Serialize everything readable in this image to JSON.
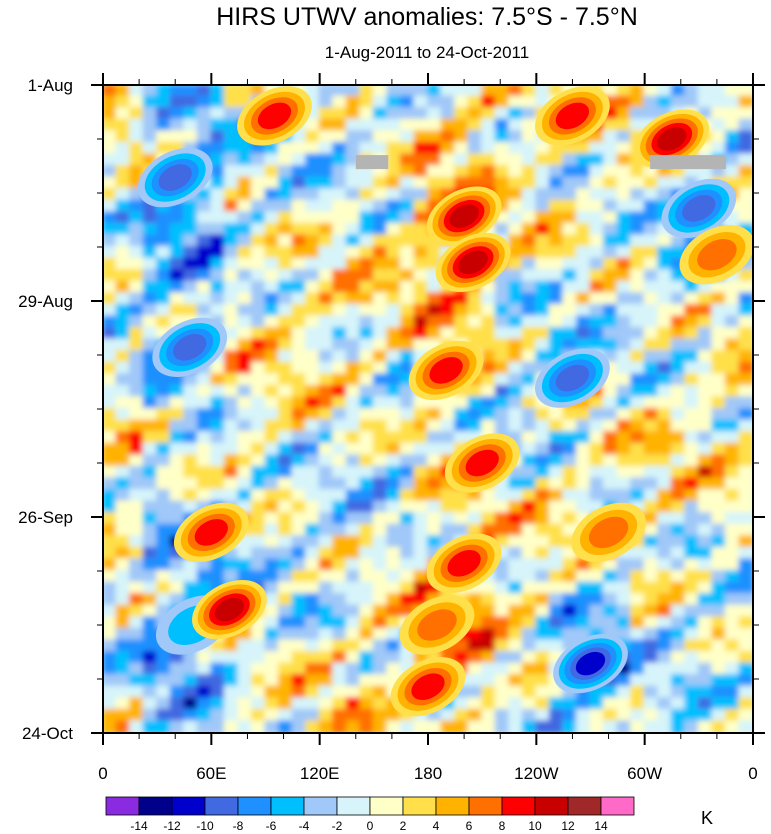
{
  "chart_data": {
    "type": "heatmap",
    "title": "HIRS UTWV anomalies: 7.5°S - 7.5°N",
    "subtitle": "1-Aug-2011 to 24-Oct-2011",
    "x_tick_labels": [
      "0",
      "60E",
      "120E",
      "180",
      "120W",
      "60W",
      "0"
    ],
    "x_tick_longitudes": [
      0,
      60,
      120,
      180,
      240,
      300,
      360
    ],
    "y_tick_labels": [
      "1-Aug",
      "29-Aug",
      "26-Sep",
      "24-Oct"
    ],
    "y_tick_days": [
      0,
      28,
      56,
      84
    ],
    "colorbar_labels": [
      "-14",
      "-12",
      "-10",
      "-8",
      "-6",
      "-4",
      "-2",
      "0",
      "2",
      "4",
      "6",
      "8",
      "10",
      "12",
      "14"
    ],
    "colorbar_levels": [
      -14,
      -12,
      -10,
      -8,
      -6,
      -4,
      -2,
      0,
      2,
      4,
      6,
      8,
      10,
      12,
      14
    ],
    "colorbar_colors": [
      "#8a2be2",
      "#00008b",
      "#0000cd",
      "#4169e1",
      "#1e90ff",
      "#00bfff",
      "#a0c8f8",
      "#d6f4fa",
      "#ffffc8",
      "#ffe04a",
      "#ffb300",
      "#ff7000",
      "#ff0000",
      "#c80000",
      "#a02828",
      "#ff69c8"
    ],
    "units": "K",
    "anomaly_features": [
      {
        "lon": 40,
        "day": 12,
        "value": -10
      },
      {
        "lon": 48,
        "day": 34,
        "value": -9
      },
      {
        "lon": 50,
        "day": 70,
        "value": -6
      },
      {
        "lon": 70,
        "day": 68,
        "value": 11
      },
      {
        "lon": 60,
        "day": 58,
        "value": 9
      },
      {
        "lon": 95,
        "day": 4,
        "value": 9
      },
      {
        "lon": 200,
        "day": 17,
        "value": 12
      },
      {
        "lon": 205,
        "day": 23,
        "value": 11
      },
      {
        "lon": 190,
        "day": 37,
        "value": 10
      },
      {
        "lon": 210,
        "day": 49,
        "value": 10
      },
      {
        "lon": 200,
        "day": 62,
        "value": 9
      },
      {
        "lon": 185,
        "day": 70,
        "value": 8
      },
      {
        "lon": 180,
        "day": 78,
        "value": 9
      },
      {
        "lon": 270,
        "day": 75,
        "value": -11
      },
      {
        "lon": 260,
        "day": 38,
        "value": -10
      },
      {
        "lon": 330,
        "day": 16,
        "value": -10
      },
      {
        "lon": 315,
        "day": 7,
        "value": 12
      },
      {
        "lon": 260,
        "day": 4,
        "value": 9
      },
      {
        "lon": 280,
        "day": 58,
        "value": 8
      },
      {
        "lon": 340,
        "day": 22,
        "value": 8
      }
    ],
    "missing_data": [
      {
        "lon_start": 140,
        "lon_end": 158,
        "day": 10
      },
      {
        "lon_start": 303,
        "lon_end": 345,
        "day": 10
      }
    ],
    "xlabel": "",
    "ylabel": ""
  }
}
